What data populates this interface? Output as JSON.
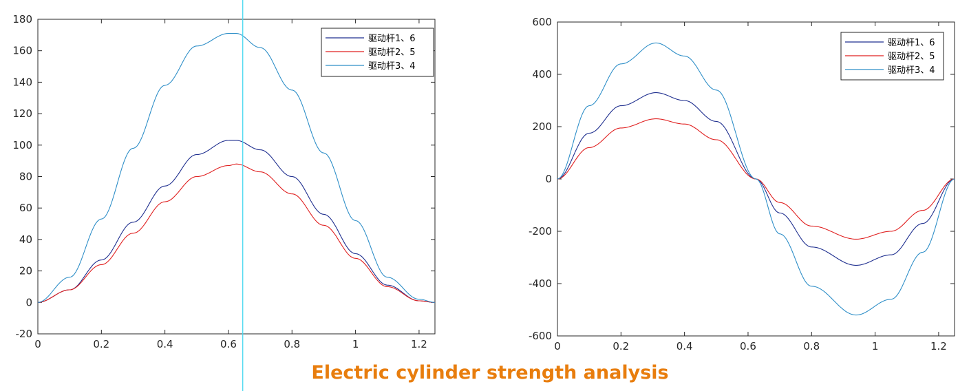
{
  "caption": "Electric cylinder strength analysis",
  "colors": {
    "series1": "#1f2f8f",
    "series2": "#e02020",
    "series3": "#2f8fc8",
    "cursor": "#48d8f0",
    "caption": "#e87d0d",
    "axis": "#262626"
  },
  "cursor_x": 0.645,
  "chart_data": [
    {
      "type": "line",
      "xlim": [
        0,
        1.25
      ],
      "ylim": [
        -20,
        180
      ],
      "x_ticks": [
        0,
        0.2,
        0.4,
        0.6,
        0.8,
        1,
        1.2
      ],
      "x_tick_labels": [
        "0",
        "0.2",
        "0.4",
        "0.6",
        "0.8",
        "1",
        "1.2"
      ],
      "y_ticks": [
        -20,
        0,
        20,
        40,
        60,
        80,
        100,
        120,
        140,
        160,
        180
      ],
      "y_tick_labels": [
        "-20",
        "0",
        "20",
        "40",
        "60",
        "80",
        "100",
        "120",
        "140",
        "160",
        "180"
      ],
      "legend": "top-right",
      "grid": false,
      "series": [
        {
          "name": "驱动杆1、6",
          "x": [
            0,
            0.1,
            0.2,
            0.3,
            0.4,
            0.5,
            0.6,
            0.625,
            0.7,
            0.8,
            0.9,
            1.0,
            1.1,
            1.2,
            1.25
          ],
          "y": [
            0,
            8,
            27,
            51,
            74,
            94,
            103,
            103,
            97,
            80,
            56,
            31,
            11,
            1,
            0
          ]
        },
        {
          "name": "驱动杆2、5",
          "x": [
            0,
            0.1,
            0.2,
            0.3,
            0.4,
            0.5,
            0.6,
            0.625,
            0.7,
            0.8,
            0.9,
            1.0,
            1.1,
            1.2,
            1.25
          ],
          "y": [
            0,
            8,
            24,
            44,
            64,
            80,
            87,
            88,
            83,
            69,
            49,
            28,
            10,
            1,
            0
          ]
        },
        {
          "name": "驱动杆3、4",
          "x": [
            0,
            0.1,
            0.2,
            0.3,
            0.4,
            0.5,
            0.6,
            0.625,
            0.7,
            0.8,
            0.9,
            1.0,
            1.1,
            1.2,
            1.25
          ],
          "y": [
            0,
            16,
            53,
            98,
            138,
            163,
            171,
            171,
            162,
            135,
            95,
            52,
            16,
            2,
            0
          ]
        }
      ]
    },
    {
      "type": "line",
      "xlim": [
        0,
        1.25
      ],
      "ylim": [
        -600,
        600
      ],
      "x_ticks": [
        0,
        0.2,
        0.4,
        0.6,
        0.8,
        1,
        1.2
      ],
      "x_tick_labels": [
        "0",
        "0.2",
        "0.4",
        "0.6",
        "0.8",
        "1",
        "1.2"
      ],
      "y_ticks": [
        -600,
        -400,
        -200,
        0,
        200,
        400,
        600
      ],
      "y_tick_labels": [
        "-600",
        "-400",
        "-200",
        "0",
        "200",
        "400",
        "600"
      ],
      "legend": "top-right",
      "grid": false,
      "series": [
        {
          "name": "驱动杆1、6",
          "x": [
            0,
            0.1,
            0.2,
            0.31,
            0.4,
            0.5,
            0.625,
            0.7,
            0.8,
            0.94,
            1.05,
            1.15,
            1.25
          ],
          "y": [
            0,
            175,
            280,
            330,
            300,
            220,
            0,
            -130,
            -260,
            -330,
            -290,
            -170,
            0
          ]
        },
        {
          "name": "驱动杆2、5",
          "x": [
            0,
            0.1,
            0.2,
            0.31,
            0.4,
            0.5,
            0.625,
            0.7,
            0.8,
            0.94,
            1.05,
            1.15,
            1.25
          ],
          "y": [
            0,
            120,
            195,
            230,
            210,
            150,
            0,
            -90,
            -180,
            -230,
            -200,
            -120,
            0
          ]
        },
        {
          "name": "驱动杆3、4",
          "x": [
            0,
            0.1,
            0.2,
            0.31,
            0.4,
            0.5,
            0.625,
            0.7,
            0.8,
            0.94,
            1.05,
            1.15,
            1.25
          ],
          "y": [
            0,
            280,
            440,
            520,
            470,
            340,
            0,
            -210,
            -410,
            -520,
            -460,
            -280,
            0
          ]
        }
      ]
    }
  ]
}
